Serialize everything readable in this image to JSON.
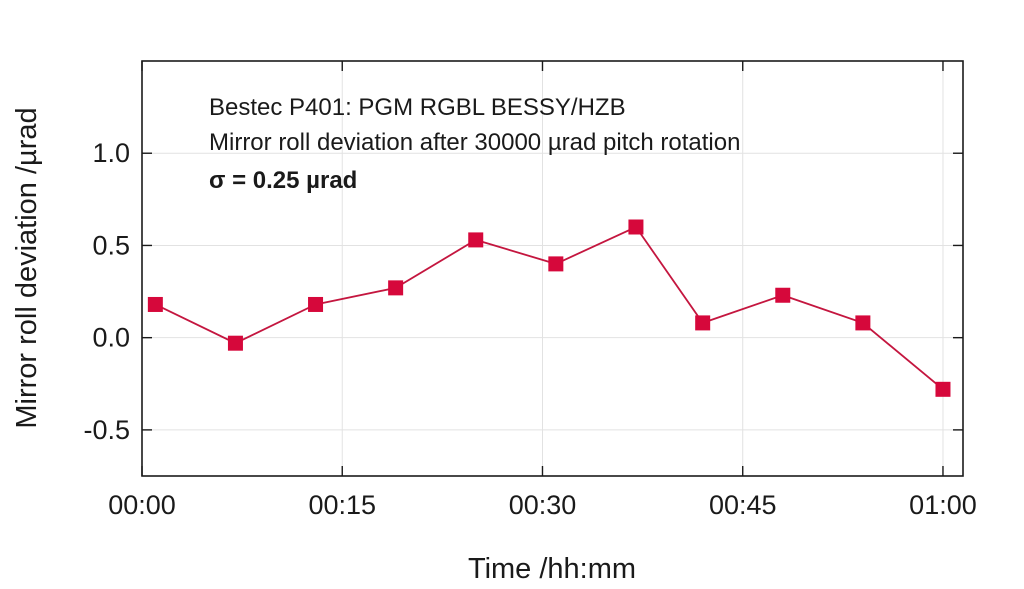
{
  "chart_data": {
    "type": "line",
    "x_format": "hh:mm",
    "x": [
      "00:01",
      "00:07",
      "00:13",
      "00:19",
      "00:25",
      "00:31",
      "00:37",
      "00:42",
      "00:48",
      "00:54",
      "01:00"
    ],
    "series": [
      {
        "values": [
          0.18,
          -0.03,
          0.18,
          0.27,
          0.53,
          0.4,
          0.6,
          0.08,
          0.23,
          0.08,
          -0.28
        ]
      }
    ],
    "xlabel": "Time /hh:mm",
    "ylabel": "Mirror roll deviation /µrad",
    "xticks": [
      "00:00",
      "00:15",
      "00:30",
      "00:45",
      "01:00"
    ],
    "yticks": [
      "-0.5",
      "0.0",
      "0.5",
      "1.0"
    ],
    "xlim": [
      "00:00",
      "01:01.5"
    ],
    "ylim": [
      -0.75,
      1.5
    ],
    "grid": true,
    "annotations": [
      "Bestec P401: PGM RGBL BESSY/HZB",
      "Mirror roll deviation after 30000 µrad pitch rotation",
      "σ = 0.25 µrad"
    ],
    "colors": {
      "series": "#d6083b",
      "line": "#c4163f",
      "grid": "#e2e2e2",
      "axis": "#1a1a1a"
    }
  }
}
